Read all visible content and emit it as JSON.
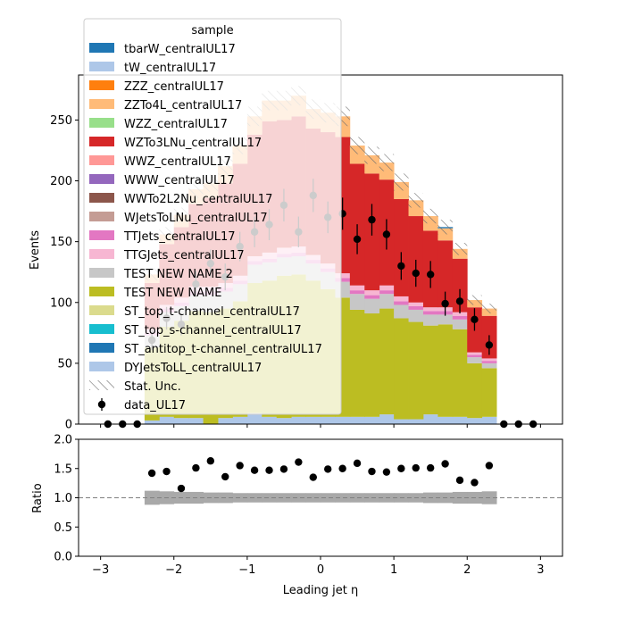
{
  "chart_data": [
    {
      "type": "stacked-step-histogram",
      "xlabel": "Leading jet  η",
      "ylabel": "Events",
      "xlim": [
        -3.3,
        3.3
      ],
      "ylim": [
        0,
        287
      ],
      "x_ticks": [
        -3,
        -2,
        -1,
        0,
        1,
        2,
        3
      ],
      "x_tick_labels": [
        "−3",
        "−2",
        "−1",
        "0",
        "1",
        "2",
        "3"
      ],
      "y_ticks": [
        0,
        50,
        100,
        150,
        200,
        250
      ],
      "y_tick_labels": [
        "0",
        "50",
        "100",
        "150",
        "200",
        "250"
      ],
      "bin_edges": [
        -2.4,
        -2.2,
        -2.0,
        -1.8,
        -1.6,
        -1.4,
        -1.2,
        -1.0,
        -0.8,
        -0.6,
        -0.4,
        -0.2,
        0.0,
        0.2,
        0.4,
        0.6,
        0.8,
        1.0,
        1.2,
        1.4,
        1.6,
        1.8,
        2.0,
        2.2,
        2.4
      ],
      "legend_title": "sample",
      "legend_location": "upper-left",
      "series": [
        {
          "name": "tbarW_centralUL17",
          "color": "#1f77b4",
          "values": [
            0,
            0,
            0,
            0,
            0,
            0,
            0,
            0,
            0,
            0,
            0,
            0,
            0,
            0,
            0,
            0,
            0,
            0,
            0,
            0,
            0,
            0,
            0,
            0
          ],
          "legend": true
        },
        {
          "name": "tW_centralUL17",
          "color": "#aec7e8",
          "values": [
            0,
            0,
            0,
            0,
            0,
            0,
            0,
            0,
            0,
            0,
            0,
            0,
            0,
            0,
            0,
            0,
            0,
            0,
            0,
            0,
            0,
            0,
            0,
            0
          ],
          "legend": true
        },
        {
          "name": "ZZZ_centralUL17",
          "color": "#ff7f0e",
          "values": [
            0,
            0,
            0,
            0,
            0,
            0,
            0,
            0,
            0,
            0,
            0,
            0,
            0,
            0,
            0,
            0,
            0,
            0,
            0,
            0,
            0,
            0,
            0,
            0
          ],
          "legend": true
        },
        {
          "name": "ZZTo4L_centralUL17",
          "color": "#ffbb78",
          "values": [
            0,
            0,
            0,
            0,
            0,
            0,
            0,
            0,
            0,
            0,
            0,
            0,
            0,
            0,
            0,
            0,
            0,
            0,
            0,
            0,
            0,
            0,
            0,
            0
          ],
          "legend": true
        },
        {
          "name": "WZZ_centralUL17",
          "color": "#98df8a",
          "values": [
            0,
            0,
            0,
            0,
            0,
            0,
            0,
            0,
            0,
            0,
            0,
            0,
            0,
            0,
            0,
            0,
            0,
            0,
            0,
            0,
            0,
            0,
            0,
            0
          ],
          "legend": true
        },
        {
          "name": "WZTo3LNu_centralUL17",
          "color": "#d62728",
          "values": [
            0,
            0,
            0,
            0,
            0,
            0,
            0,
            0,
            0,
            0,
            0,
            0,
            0,
            0,
            0,
            0,
            0,
            0,
            0,
            0,
            0,
            0,
            0,
            0
          ],
          "legend": true
        },
        {
          "name": "WWZ_centralUL17",
          "color": "#ff9896",
          "values": [
            0,
            0,
            0,
            0,
            0,
            0,
            0,
            0,
            0,
            0,
            0,
            0,
            0,
            0,
            0,
            0,
            0,
            0,
            0,
            0,
            0,
            0,
            0,
            0
          ],
          "legend": true
        },
        {
          "name": "WWW_centralUL17",
          "color": "#9467bd",
          "values": [
            0,
            0,
            0,
            0,
            0,
            0,
            0,
            0,
            0,
            0,
            0,
            0,
            0,
            0,
            0,
            0,
            0,
            0,
            0,
            0,
            0,
            0,
            0,
            0
          ],
          "legend": true
        },
        {
          "name": "WWTo2L2Nu_centralUL17",
          "color": "#8c564b",
          "values": [
            0,
            0,
            0,
            0,
            0,
            0,
            0,
            0,
            0,
            0,
            0,
            0,
            0,
            0,
            0,
            0,
            0,
            0,
            0,
            0,
            0,
            0,
            0,
            0
          ],
          "legend": true
        },
        {
          "name": "WJetsToLNu_centralUL17",
          "color": "#c49c94",
          "values": [
            0,
            0,
            0,
            0,
            0,
            0,
            0,
            0,
            0,
            0,
            0,
            0,
            0,
            0,
            0,
            0,
            0,
            0,
            0,
            0,
            0,
            0,
            0,
            0
          ],
          "legend": true
        },
        {
          "name": "TTJets_centralUL17",
          "color": "#e377c2",
          "values": [
            0,
            0,
            0,
            0,
            0,
            0,
            0,
            0,
            0,
            0,
            0,
            0,
            0,
            0,
            0,
            0,
            0,
            0,
            0,
            0,
            0,
            0,
            0,
            0
          ],
          "legend": true
        },
        {
          "name": "TTGJets_centralUL17",
          "color": "#f7b6d2",
          "values": [
            0,
            0,
            0,
            0,
            0,
            0,
            0,
            0,
            0,
            0,
            0,
            0,
            0,
            0,
            0,
            0,
            0,
            0,
            0,
            0,
            0,
            0,
            0,
            0
          ],
          "legend": true
        },
        {
          "name": "TEST NEW NAME 2",
          "color": "#c7c7c7",
          "values": [
            0,
            0,
            0,
            0,
            0,
            0,
            0,
            0,
            0,
            0,
            0,
            0,
            0,
            0,
            0,
            0,
            0,
            0,
            0,
            0,
            0,
            0,
            0,
            0
          ],
          "legend": true
        },
        {
          "name": "TEST NEW NAME",
          "color": "#bcbd22",
          "values": [
            0,
            0,
            0,
            0,
            0,
            0,
            0,
            0,
            0,
            0,
            0,
            0,
            0,
            0,
            0,
            0,
            0,
            0,
            0,
            0,
            0,
            0,
            0,
            0
          ],
          "legend": true
        },
        {
          "name": "ST_top_t-channel_centralUL17",
          "color": "#dbdb8d",
          "values": [
            0,
            0,
            0,
            0,
            0,
            0,
            0,
            0,
            0,
            0,
            0,
            0,
            0,
            0,
            0,
            0,
            0,
            0,
            0,
            0,
            0,
            0,
            0,
            0
          ],
          "legend": true
        },
        {
          "name": "ST_top_s-channel_centralUL17",
          "color": "#17becf",
          "values": [
            0,
            0,
            0,
            0,
            0,
            0,
            0,
            0,
            0,
            0,
            0,
            0,
            0,
            0,
            0,
            0,
            0,
            0,
            0,
            0,
            0,
            0,
            0,
            0
          ],
          "legend": true
        },
        {
          "name": "ST_antitop_t-channel_centralUL17",
          "color": "#1f77b4",
          "values": [
            0,
            0,
            0,
            0,
            0,
            0,
            0,
            0,
            0,
            0,
            0,
            0,
            0,
            0,
            0,
            0,
            0,
            0,
            0,
            0,
            0,
            0,
            0,
            0
          ],
          "legend": true
        },
        {
          "name": "DYJetsToLL_centralUL17",
          "color": "#aec7e8",
          "values": [
            3,
            6,
            5,
            5,
            0,
            5,
            6,
            9,
            6,
            5,
            6,
            6,
            6,
            6,
            6,
            6,
            8,
            4,
            4,
            8,
            6,
            6,
            5,
            6
          ],
          "legend": true
        },
        {
          "name": "",
          "color": "#bcbd22",
          "values": [
            60,
            74,
            80,
            88,
            92,
            90,
            95,
            107,
            112,
            117,
            117,
            112,
            105,
            98,
            88,
            85,
            87,
            83,
            80,
            73,
            76,
            72,
            45,
            40
          ],
          "legend": false
        },
        {
          "name": "",
          "color": "#c7c7c7",
          "values": [
            10,
            12,
            12,
            13,
            14,
            14,
            14,
            15,
            15,
            15,
            15,
            14,
            14,
            13,
            13,
            12,
            12,
            11,
            10,
            9,
            8,
            8,
            5,
            4
          ],
          "legend": false
        },
        {
          "name": "",
          "color": "#e377c2",
          "values": [
            2,
            3,
            3,
            3,
            3,
            3,
            3,
            3,
            3,
            3,
            3,
            3,
            3,
            3,
            3,
            3,
            3,
            3,
            3,
            3,
            3,
            3,
            2,
            2
          ],
          "legend": false
        },
        {
          "name": "",
          "color": "#f7b6d2",
          "values": [
            3,
            3,
            4,
            4,
            4,
            4,
            4,
            4,
            5,
            5,
            5,
            4,
            4,
            4,
            4,
            4,
            4,
            4,
            3,
            3,
            3,
            3,
            2,
            2
          ],
          "legend": false
        },
        {
          "name": "",
          "color": "#d62728",
          "values": [
            38,
            50,
            58,
            68,
            73,
            82,
            92,
            100,
            108,
            105,
            107,
            104,
            108,
            112,
            100,
            96,
            87,
            80,
            71,
            63,
            55,
            44,
            37,
            35
          ],
          "legend": false
        },
        {
          "name": "",
          "color": "#ffbb78",
          "values": [
            7,
            8,
            10,
            12,
            12,
            14,
            15,
            15,
            17,
            16,
            17,
            16,
            16,
            17,
            15,
            15,
            14,
            14,
            13,
            12,
            10,
            8,
            6,
            6
          ],
          "legend": false
        },
        {
          "name": "",
          "color": "#1f77b4",
          "values": [
            0,
            0,
            0,
            0,
            0,
            0,
            0,
            0,
            0,
            0,
            0,
            0,
            0,
            0,
            0,
            0,
            0,
            0,
            0,
            0,
            1,
            0,
            0,
            0
          ],
          "legend": false
        }
      ],
      "stat_unc_label": "Stat. Unc.",
      "stat_unc_halfwidth": [
        5,
        6,
        6,
        7,
        7,
        7,
        7,
        8,
        8,
        8,
        8,
        8,
        8,
        8,
        7,
        7,
        7,
        7,
        6,
        6,
        6,
        5,
        4,
        4
      ],
      "data": {
        "name": "data_UL17",
        "color": "#000000",
        "x": [
          -2.9,
          -2.7,
          -2.5,
          -2.3,
          -2.1,
          -1.9,
          -1.7,
          -1.5,
          -1.3,
          -1.1,
          -0.9,
          -0.7,
          -0.5,
          -0.3,
          -0.1,
          0.1,
          0.3,
          0.5,
          0.7,
          0.9,
          1.1,
          1.3,
          1.5,
          1.7,
          1.9,
          2.1,
          2.3,
          2.5,
          2.7,
          2.9
        ],
        "y": [
          0,
          0,
          0,
          69,
          87,
          82,
          115,
          132,
          121,
          146,
          158,
          164,
          180,
          158,
          188,
          170,
          173,
          152,
          168,
          156,
          130,
          124,
          123,
          99,
          101,
          86,
          65,
          0,
          0,
          0
        ],
        "yerr": [
          0,
          0,
          0,
          8.3,
          9.3,
          9.1,
          10.7,
          11.5,
          11.0,
          12.1,
          12.6,
          12.8,
          13.4,
          12.6,
          13.7,
          13.0,
          13.2,
          12.3,
          13.0,
          12.5,
          11.4,
          11.1,
          11.1,
          9.9,
          10.0,
          9.3,
          8.1,
          0,
          0,
          0
        ]
      }
    },
    {
      "type": "ratio-scatter",
      "xlabel": "Leading jet  η",
      "ylabel": "Ratio",
      "xlim": [
        -3.3,
        3.3
      ],
      "ylim": [
        0.0,
        2.0
      ],
      "x_ticks": [
        -3,
        -2,
        -1,
        0,
        1,
        2,
        3
      ],
      "x_tick_labels": [
        "−3",
        "−2",
        "−1",
        "0",
        "1",
        "2",
        "3"
      ],
      "y_ticks": [
        0.0,
        0.5,
        1.0,
        1.5,
        2.0
      ],
      "y_tick_labels": [
        "0.0",
        "0.5",
        "1.0",
        "1.5",
        "2.0"
      ],
      "reference_line": 1.0,
      "band_color": "#a9a9a9",
      "band_halfwidth": [
        0.12,
        0.11,
        0.1,
        0.1,
        0.09,
        0.09,
        0.08,
        0.08,
        0.08,
        0.08,
        0.08,
        0.08,
        0.08,
        0.08,
        0.08,
        0.08,
        0.08,
        0.08,
        0.08,
        0.09,
        0.09,
        0.1,
        0.1,
        0.11
      ],
      "x": [
        -2.3,
        -2.1,
        -1.9,
        -1.7,
        -1.5,
        -1.3,
        -1.1,
        -0.9,
        -0.7,
        -0.5,
        -0.3,
        -0.1,
        0.1,
        0.3,
        0.5,
        0.7,
        0.9,
        1.1,
        1.3,
        1.5,
        1.7,
        1.9,
        2.1,
        2.3
      ],
      "y": [
        1.42,
        1.45,
        1.16,
        1.51,
        1.63,
        1.36,
        1.55,
        1.47,
        1.47,
        1.49,
        1.61,
        1.35,
        1.49,
        1.5,
        1.59,
        1.45,
        1.44,
        1.5,
        1.51,
        1.51,
        1.58,
        1.3,
        1.26,
        1.55
      ]
    }
  ]
}
